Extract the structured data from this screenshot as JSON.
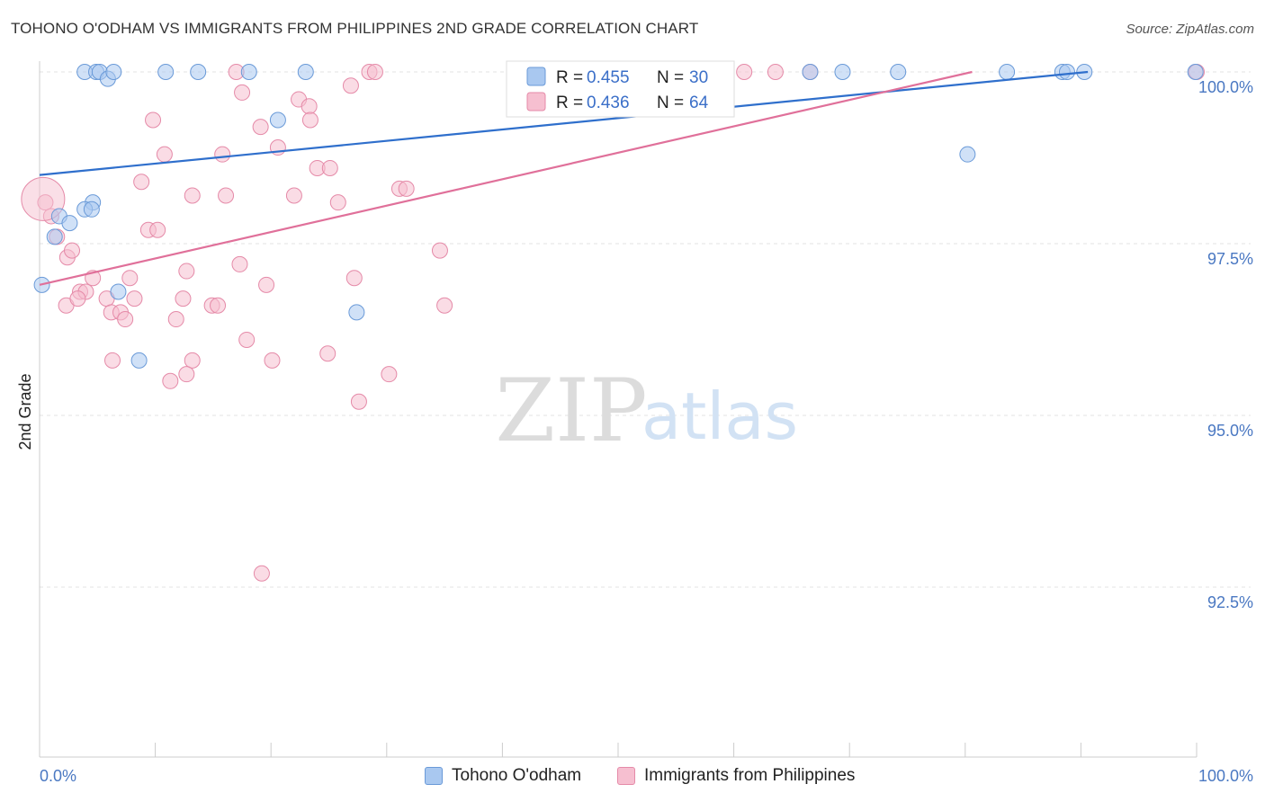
{
  "title": "TOHONO O'ODHAM VS IMMIGRANTS FROM PHILIPPINES 2ND GRADE CORRELATION CHART",
  "source": "Source: ZipAtlas.com",
  "watermark": {
    "zip": "ZIP",
    "atlas": "atlas"
  },
  "colors": {
    "blue_fill": "#a9c8f0",
    "blue_stroke": "#6a9ad8",
    "blue_line": "#2f6fcc",
    "pink_fill": "#f6bfd0",
    "pink_stroke": "#e58aa8",
    "pink_line": "#e0709a",
    "axis_label": "#4a78c2"
  },
  "legend": {
    "entries": [
      {
        "r_label": "R = ",
        "r_value": "0.455",
        "n_label": "N = ",
        "n_value": "30"
      },
      {
        "r_label": "R = ",
        "r_value": "0.436",
        "n_label": "N = ",
        "n_value": "64"
      }
    ]
  },
  "bottom_legend": [
    "Tohono O'odham",
    "Immigrants from Philippines"
  ],
  "chart_data": {
    "type": "scatter",
    "title": "TOHONO O'ODHAM VS IMMIGRANTS FROM PHILIPPINES 2ND GRADE CORRELATION CHART",
    "xlabel": "",
    "ylabel": "2nd Grade",
    "xlim": [
      0,
      100
    ],
    "ylim": [
      90.2,
      100.4
    ],
    "x_tick_labels": [
      "0.0%",
      "100.0%"
    ],
    "y_ticks": [
      92.5,
      95.0,
      97.5,
      100.0
    ],
    "y_tick_labels": [
      "92.5%",
      "95.0%",
      "97.5%",
      "100.0%"
    ],
    "grid": true,
    "legend_position": "top-center",
    "series": [
      {
        "name": "Tohono O'odham",
        "r": 0.455,
        "n": 30,
        "trend": {
          "x": [
            0,
            90.6
          ],
          "y": [
            98.5,
            100.0
          ]
        },
        "points": [
          [
            3.9,
            100.0
          ],
          [
            4.9,
            100.0
          ],
          [
            5.2,
            100.0
          ],
          [
            5.9,
            99.9
          ],
          [
            6.4,
            100.0
          ],
          [
            10.9,
            100.0
          ],
          [
            13.7,
            100.0
          ],
          [
            18.1,
            100.0
          ],
          [
            20.6,
            99.3
          ],
          [
            23.0,
            100.0
          ],
          [
            46.8,
            100.0
          ],
          [
            66.6,
            100.0
          ],
          [
            69.4,
            100.0
          ],
          [
            74.2,
            100.0
          ],
          [
            83.6,
            100.0
          ],
          [
            88.4,
            100.0
          ],
          [
            88.8,
            100.0
          ],
          [
            90.3,
            100.0
          ],
          [
            99.9,
            100.0
          ],
          [
            80.2,
            98.8
          ],
          [
            4.6,
            98.1
          ],
          [
            3.9,
            98.0
          ],
          [
            1.3,
            97.6
          ],
          [
            1.7,
            97.9
          ],
          [
            4.5,
            98.0
          ],
          [
            0.2,
            96.9
          ],
          [
            6.8,
            96.8
          ],
          [
            27.4,
            96.5
          ],
          [
            8.6,
            95.8
          ],
          [
            2.6,
            97.8
          ]
        ]
      },
      {
        "name": "Immigrants from Philippines",
        "r": 0.436,
        "n": 64,
        "trend": {
          "x": [
            0,
            80.6
          ],
          "y": [
            96.9,
            100.0
          ]
        },
        "points": [
          [
            17.0,
            100.0
          ],
          [
            28.5,
            100.0
          ],
          [
            29.0,
            100.0
          ],
          [
            60.9,
            100.0
          ],
          [
            63.6,
            100.0
          ],
          [
            66.6,
            100.0
          ],
          [
            100.0,
            100.0
          ],
          [
            26.9,
            99.8
          ],
          [
            17.5,
            99.7
          ],
          [
            22.4,
            99.6
          ],
          [
            23.3,
            99.5
          ],
          [
            9.8,
            99.3
          ],
          [
            19.1,
            99.2
          ],
          [
            23.4,
            99.3
          ],
          [
            20.6,
            98.9
          ],
          [
            10.8,
            98.8
          ],
          [
            15.8,
            98.8
          ],
          [
            24.0,
            98.6
          ],
          [
            25.1,
            98.6
          ],
          [
            8.8,
            98.4
          ],
          [
            31.1,
            98.3
          ],
          [
            31.7,
            98.3
          ],
          [
            13.2,
            98.2
          ],
          [
            16.1,
            98.2
          ],
          [
            22.0,
            98.2
          ],
          [
            25.8,
            98.1
          ],
          [
            0.5,
            98.1
          ],
          [
            1.0,
            97.9
          ],
          [
            1.5,
            97.6
          ],
          [
            9.4,
            97.7
          ],
          [
            10.2,
            97.7
          ],
          [
            2.4,
            97.3
          ],
          [
            2.8,
            97.4
          ],
          [
            34.6,
            97.4
          ],
          [
            17.3,
            97.2
          ],
          [
            12.7,
            97.1
          ],
          [
            4.6,
            97.0
          ],
          [
            7.8,
            97.0
          ],
          [
            19.6,
            96.9
          ],
          [
            27.2,
            97.0
          ],
          [
            3.5,
            96.8
          ],
          [
            4.0,
            96.8
          ],
          [
            5.8,
            96.7
          ],
          [
            8.2,
            96.7
          ],
          [
            12.4,
            96.7
          ],
          [
            14.9,
            96.6
          ],
          [
            15.4,
            96.6
          ],
          [
            2.3,
            96.6
          ],
          [
            3.3,
            96.7
          ],
          [
            6.2,
            96.5
          ],
          [
            7.0,
            96.5
          ],
          [
            7.4,
            96.4
          ],
          [
            11.8,
            96.4
          ],
          [
            35.0,
            96.6
          ],
          [
            17.9,
            96.1
          ],
          [
            6.3,
            95.8
          ],
          [
            13.2,
            95.8
          ],
          [
            20.1,
            95.8
          ],
          [
            24.9,
            95.9
          ],
          [
            30.2,
            95.6
          ],
          [
            12.7,
            95.6
          ],
          [
            11.3,
            95.5
          ],
          [
            27.6,
            95.2
          ],
          [
            19.2,
            92.7
          ]
        ]
      }
    ]
  }
}
